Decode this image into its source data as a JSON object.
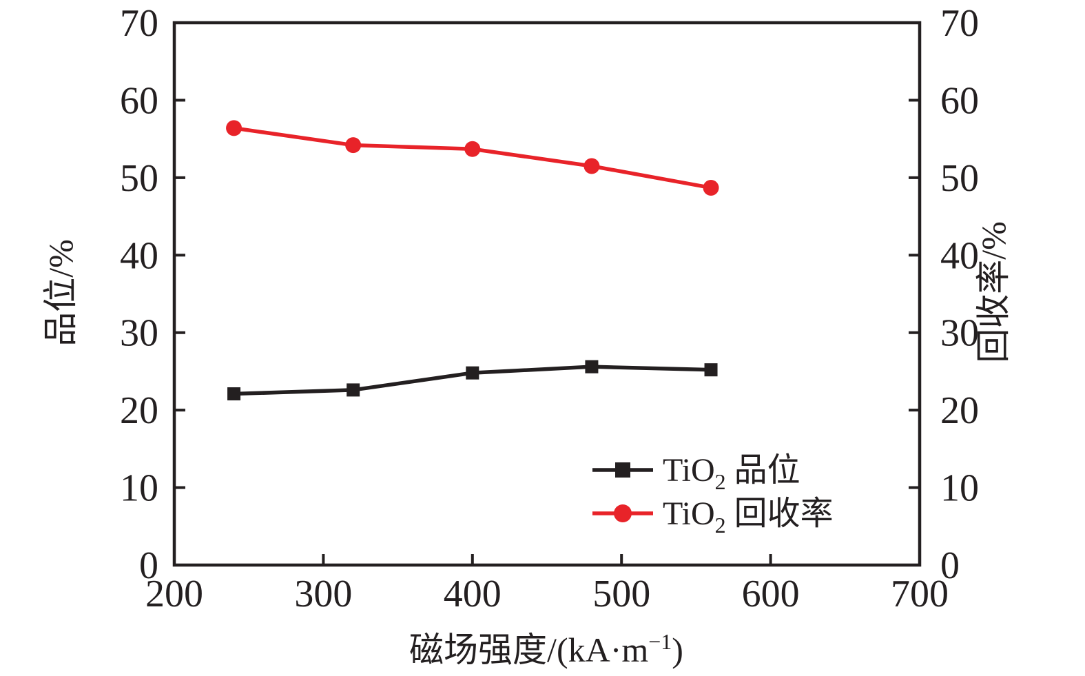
{
  "figure": {
    "background": "#ffffff"
  },
  "chart_data": {
    "type": "line",
    "x": [
      240,
      320,
      400,
      480,
      560
    ],
    "series": [
      {
        "name": "TiO2 品位",
        "axis": "left",
        "marker": "square",
        "color": "#231f20",
        "values": [
          22.1,
          22.6,
          24.8,
          25.6,
          25.2
        ]
      },
      {
        "name": "TiO2 回收率",
        "axis": "right",
        "marker": "circle",
        "color": "#e82329",
        "values": [
          56.4,
          54.2,
          53.7,
          51.5,
          48.7
        ]
      }
    ],
    "title": "",
    "xlabel": "磁场强度/(kA·m⁻¹)",
    "ylabel_left": "品位/%",
    "ylabel_right": "回收率/%",
    "xlim": [
      200,
      700
    ],
    "ylim": [
      0,
      70
    ],
    "x_ticks": [
      200,
      300,
      400,
      500,
      600,
      700
    ],
    "y_ticks": [
      0,
      10,
      20,
      30,
      40,
      50,
      60,
      70
    ],
    "grid": false,
    "axis_color": "#231f20",
    "legend_position": "inside lower-right"
  },
  "labels": {
    "xlabel_prefix": "磁场强度/(kA·m",
    "xlabel_sup": "−1",
    "xlabel_suffix": ")",
    "ylabel_left": "品位/%",
    "ylabel_right": "回收率/%"
  },
  "legend": {
    "entries": [
      {
        "prefix": "TiO",
        "sub": "2",
        "suffix": " 品位",
        "color": "#231f20",
        "marker": "square"
      },
      {
        "prefix": "TiO",
        "sub": "2",
        "suffix": " 回收率",
        "color": "#e82329",
        "marker": "circle"
      }
    ]
  }
}
